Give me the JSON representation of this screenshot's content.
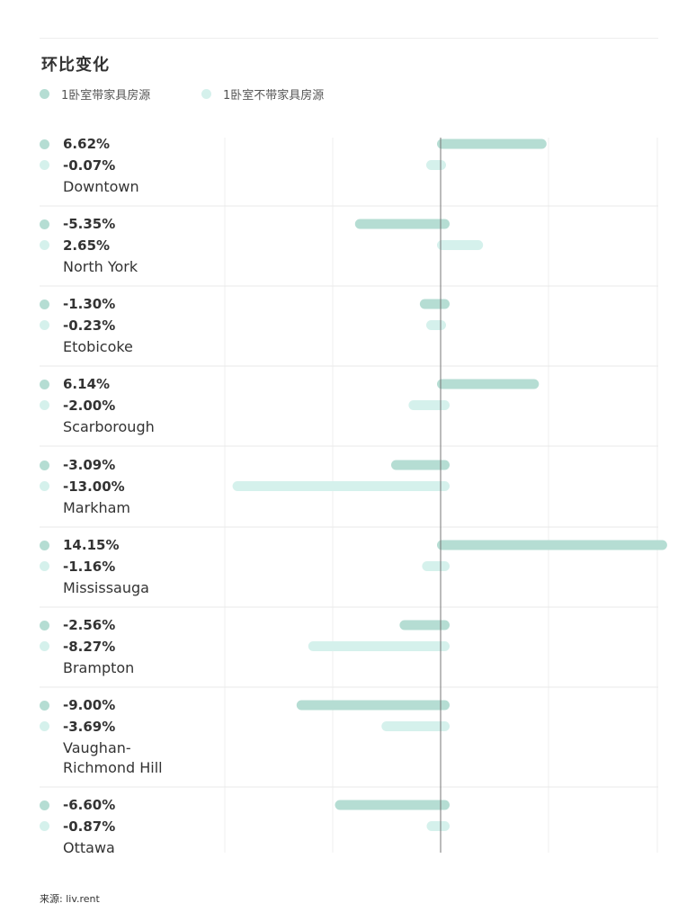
{
  "colors": {
    "furnished": "#b5ddd3",
    "unfurnished": "#d5f1ec",
    "gridline": "#efefef",
    "zeroline": "#777777",
    "separator": "#eaeaea"
  },
  "chart_data": {
    "type": "bar",
    "orientation": "horizontal",
    "title": "环比变化",
    "unit": "%",
    "legend": [
      "1卧室带家具房源",
      "1卧室不带家具房源"
    ],
    "categories": [
      "Downtown",
      "North York",
      "Etobicoke",
      "Scarborough",
      "Markham",
      "Mississauga",
      "Brampton",
      "Vaughan-\nRichmond Hill",
      "Ottawa"
    ],
    "series": [
      {
        "name": "1卧室带家具房源",
        "values": [
          6.62,
          -5.35,
          -1.3,
          6.14,
          -3.09,
          14.15,
          -2.56,
          -9.0,
          -6.6
        ],
        "labels": [
          "6.62%",
          "-5.35%",
          "-1.30%",
          "6.14%",
          "-3.09%",
          "14.15%",
          "-2.56%",
          "-9.00%",
          "-6.60%"
        ]
      },
      {
        "name": "1卧室不带家具房源",
        "values": [
          -0.07,
          2.65,
          -0.23,
          -2.0,
          -13.0,
          -1.16,
          -8.27,
          -3.69,
          -0.87
        ],
        "labels": [
          "-0.07%",
          "2.65%",
          "-0.23%",
          "-2.00%",
          "-13.00%",
          "-1.16%",
          "-8.27%",
          "-3.69%",
          "-0.87%"
        ]
      }
    ],
    "xlim": [
      -13.5,
      13.5
    ],
    "grid": true,
    "legend_position": "top-left"
  },
  "source": "来源: liv.rent"
}
